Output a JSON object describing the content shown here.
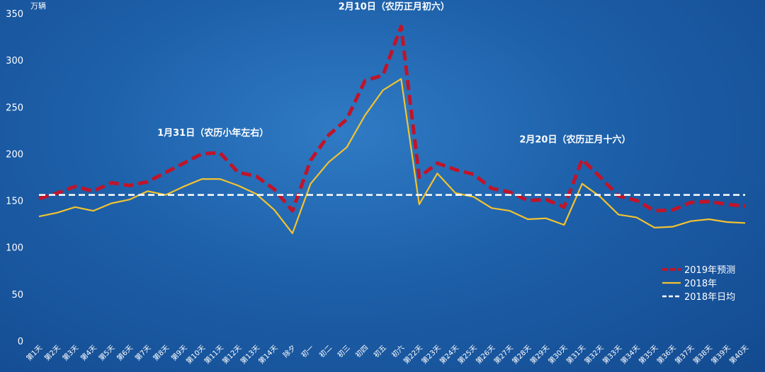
{
  "chart_data": {
    "type": "line",
    "unit_label": "万辆",
    "ylim": [
      0,
      350
    ],
    "yticks": [
      0,
      50,
      100,
      150,
      200,
      250,
      300,
      350
    ],
    "grid": false,
    "legend_position": "bottom-right",
    "categories": [
      "第1天",
      "第2天",
      "第3天",
      "第4天",
      "第5天",
      "第6天",
      "第7天",
      "第8天",
      "第9天",
      "第10天",
      "第11天",
      "第12天",
      "第13天",
      "第14天",
      "除夕",
      "初一",
      "初二",
      "初三",
      "初四",
      "初五",
      "初六",
      "第22天",
      "第23天",
      "第24天",
      "第25天",
      "第26天",
      "第27天",
      "第28天",
      "第29天",
      "第30天",
      "第31天",
      "第32天",
      "第33天",
      "第34天",
      "第35天",
      "第36天",
      "第37天",
      "第38天",
      "第39天",
      "第40天"
    ],
    "series": [
      {
        "name": "2019年预测",
        "style": "dashed",
        "color": "#c0142a",
        "values": [
          152,
          158,
          165,
          160,
          169,
          166,
          170,
          180,
          190,
          200,
          201,
          180,
          176,
          162,
          139,
          193,
          220,
          237,
          278,
          284,
          336,
          175,
          190,
          183,
          178,
          163,
          159,
          150,
          151,
          143,
          194,
          175,
          155,
          150,
          139,
          140,
          148,
          149,
          146,
          144
        ]
      },
      {
        "name": "2018年",
        "style": "solid",
        "color": "#f2c230",
        "values": [
          133,
          137,
          143,
          139,
          147,
          151,
          160,
          156,
          165,
          173,
          173,
          166,
          157,
          140,
          115,
          168,
          191,
          207,
          241,
          268,
          280,
          146,
          179,
          158,
          154,
          142,
          139,
          130,
          131,
          124,
          168,
          154,
          135,
          132,
          121,
          122,
          128,
          130,
          127,
          126
        ]
      },
      {
        "name": "2018年日均",
        "style": "dashed",
        "color": "#ffffff",
        "constant": 156
      }
    ],
    "annotations": [
      {
        "text": "1月31日（农历小年左右）",
        "index": 10,
        "value": 201
      },
      {
        "text": "2月10日（农历正月初六）",
        "index": 20,
        "value": 336
      },
      {
        "text": "2月20日（农历正月十六）",
        "index": 30,
        "value": 194
      }
    ]
  }
}
